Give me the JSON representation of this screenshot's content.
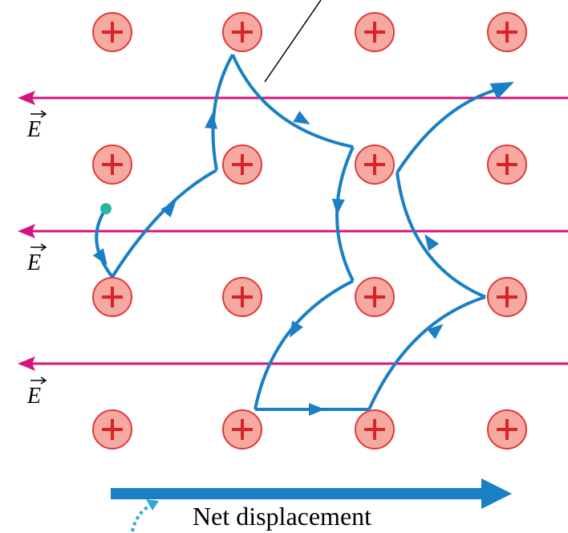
{
  "field_labels": [
    "E",
    "E",
    "E"
  ],
  "net_displacement_label": "Net displacement"
}
